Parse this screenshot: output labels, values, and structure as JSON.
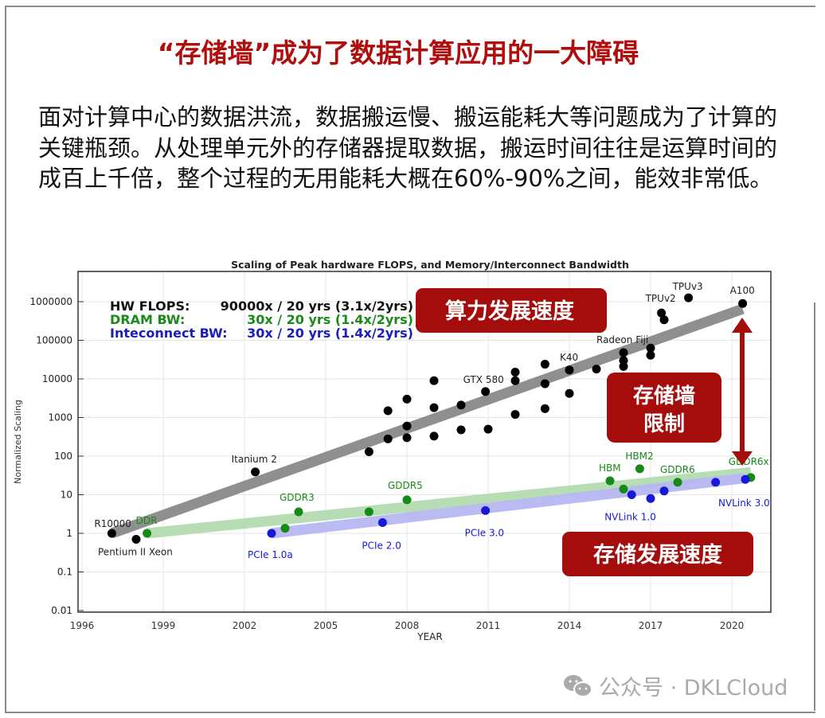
{
  "slide": {
    "title": "“存储墙”成为了数据计算应用的一大障碍",
    "body": "面对计算中心的数据洪流，数据搬运慢、搬运能耗大等问题成为了计算的关键瓶颈。从处理单元外的存储器提取数据，搬运时间往往是运算时间的成百上千倍，整个过程的无用能耗大概在60%-90%之间，能效非常低。",
    "callouts": {
      "compute": "算力发展速度",
      "wall_line1": "存储墙",
      "wall_line2": "限制",
      "memory": "存储发展速度"
    },
    "callout_color": "#a50d0d",
    "watermark": "公众号 · DKLCloud",
    "watermark_icon": "wechat-icon"
  },
  "chart_data": {
    "type": "scatter",
    "title": "Scaling of Peak hardware FLOPS, and Memory/Interconnect Bandwidth",
    "xlabel": "YEAR",
    "ylabel": "Normalized Scaling",
    "xlim": [
      1996,
      2021.6
    ],
    "ylim": [
      0.01,
      3000000
    ],
    "yscale": "log",
    "grid": true,
    "xticks": [
      "1996",
      "1999",
      "2002",
      "2005",
      "2008",
      "2011",
      "2014",
      "2017",
      "2020"
    ],
    "yticks": [
      "0.01",
      "0.1",
      "1",
      "10",
      "100",
      "1000",
      "10000",
      "100000",
      "1000000"
    ],
    "legend": [
      {
        "label": "HW FLOPS:",
        "value": "90000x / 20 yrs (3.1x/2yrs)",
        "color": "#111111"
      },
      {
        "label": "DRAM BW:",
        "value": "30x / 20 yrs (1.4x/2yrs)",
        "color": "#1a8a1a"
      },
      {
        "label": "Inteconnect BW:",
        "value": "30x / 20 yrs (1.4x/2yrs)",
        "color": "#1c1cc0"
      }
    ],
    "series": [
      {
        "name": "HW FLOPS",
        "color": "#000000",
        "trend_color": "#8a8a8a",
        "trend": [
          [
            1997.1,
            1
          ],
          [
            2020.4,
            650000
          ]
        ],
        "points": [
          {
            "x": 1997.1,
            "y": 1,
            "label": "R10000"
          },
          {
            "x": 1998.0,
            "y": 0.7,
            "label": "Pentium II Xeon"
          },
          {
            "x": 2002.4,
            "y": 39,
            "label": "Itanium 2"
          },
          {
            "x": 2006.6,
            "y": 130
          },
          {
            "x": 2007.3,
            "y": 280
          },
          {
            "x": 2007.3,
            "y": 1500
          },
          {
            "x": 2008.0,
            "y": 3000
          },
          {
            "x": 2008.0,
            "y": 600
          },
          {
            "x": 2008.0,
            "y": 300
          },
          {
            "x": 2009.0,
            "y": 9000
          },
          {
            "x": 2009.0,
            "y": 1800
          },
          {
            "x": 2009.0,
            "y": 330
          },
          {
            "x": 2010.0,
            "y": 2100
          },
          {
            "x": 2010.0,
            "y": 480
          },
          {
            "x": 2010.9,
            "y": 4700,
            "label": "GTX 580"
          },
          {
            "x": 2011.0,
            "y": 500
          },
          {
            "x": 2012.0,
            "y": 15000
          },
          {
            "x": 2012.0,
            "y": 9000
          },
          {
            "x": 2012.0,
            "y": 1200
          },
          {
            "x": 2013.1,
            "y": 24000
          },
          {
            "x": 2013.1,
            "y": 7500
          },
          {
            "x": 2013.1,
            "y": 1700
          },
          {
            "x": 2014.0,
            "y": 17000,
            "label": "K40"
          },
          {
            "x": 2014.0,
            "y": 4200
          },
          {
            "x": 2015.0,
            "y": 18000
          },
          {
            "x": 2016.0,
            "y": 48000,
            "label": "Radeon Fiji"
          },
          {
            "x": 2016.0,
            "y": 30000
          },
          {
            "x": 2016.0,
            "y": 21000
          },
          {
            "x": 2017.0,
            "y": 63000
          },
          {
            "x": 2017.0,
            "y": 41000
          },
          {
            "x": 2017.4,
            "y": 510000,
            "label": "TPUv2"
          },
          {
            "x": 2017.5,
            "y": 340000
          },
          {
            "x": 2018.4,
            "y": 1260000,
            "label": "TPUv3"
          },
          {
            "x": 2020.4,
            "y": 900000,
            "label": "A100"
          }
        ]
      },
      {
        "name": "DRAM BW",
        "color": "#168a16",
        "trend_color": "#b4dcb0",
        "trend": [
          [
            1998.4,
            1
          ],
          [
            2020.7,
            38
          ]
        ],
        "points": [
          {
            "x": 1998.4,
            "y": 1,
            "label": "DDR"
          },
          {
            "x": 2003.5,
            "y": 1.35
          },
          {
            "x": 2004.0,
            "y": 3.6,
            "label": "GDDR3"
          },
          {
            "x": 2006.6,
            "y": 3.6
          },
          {
            "x": 2008.0,
            "y": 7.4,
            "label": "GDDR5"
          },
          {
            "x": 2015.5,
            "y": 23,
            "label": "HBM"
          },
          {
            "x": 2016.0,
            "y": 14
          },
          {
            "x": 2016.6,
            "y": 47,
            "label": "HBM2"
          },
          {
            "x": 2018.0,
            "y": 21,
            "label": "GDDR6"
          },
          {
            "x": 2020.7,
            "y": 28,
            "label": "GDDR6x"
          }
        ]
      },
      {
        "name": "Inteconnect BW",
        "color": "#1818d8",
        "trend_color": "#b8b8f4",
        "trend": [
          [
            2003.0,
            1
          ],
          [
            2020.5,
            27
          ]
        ],
        "points": [
          {
            "x": 2003.0,
            "y": 1,
            "label": "PCIe 1.0a"
          },
          {
            "x": 2007.1,
            "y": 1.9,
            "label": "PCIe 2.0"
          },
          {
            "x": 2010.9,
            "y": 3.9,
            "label": "PCIe 3.0"
          },
          {
            "x": 2016.3,
            "y": 10,
            "label": "NVLink 1.0"
          },
          {
            "x": 2017.0,
            "y": 8
          },
          {
            "x": 2017.5,
            "y": 12.5
          },
          {
            "x": 2019.4,
            "y": 21
          },
          {
            "x": 2020.5,
            "y": 25,
            "label": "NVLink 3.0"
          }
        ]
      }
    ]
  }
}
